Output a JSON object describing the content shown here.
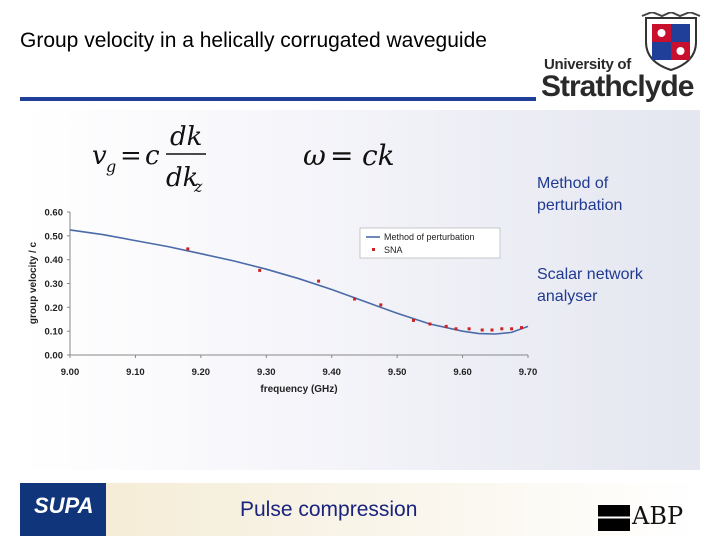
{
  "slide": {
    "title": "Group velocity in a helically corrugated waveguide",
    "footer_text": "Pulse compression"
  },
  "logos": {
    "university_of": "University of",
    "university_name": "Strathclyde",
    "supa": "SUPA",
    "abp": "ABP"
  },
  "equations": {
    "group_velocity": "vg = c dk/dkz",
    "dispersion": "ω = ck"
  },
  "side_labels": {
    "method": "Method of perturbation",
    "sna": "Scalar network analyser"
  },
  "colors": {
    "accent": "#1f3f99",
    "series_line": "#4a6aa8",
    "series_points": "#cc2222",
    "label_blue": "#1f3a8f"
  },
  "chart_data": {
    "type": "scatter",
    "xlabel": "frequency (GHz)",
    "ylabel": "group velocity / c",
    "xlim": [
      9.0,
      9.7
    ],
    "ylim": [
      0.0,
      0.6
    ],
    "x_ticks": [
      "9.00",
      "9.10",
      "9.20",
      "9.30",
      "9.40",
      "9.50",
      "9.60",
      "9.70"
    ],
    "y_ticks": [
      "0.00",
      "0.10",
      "0.20",
      "0.30",
      "0.40",
      "0.50",
      "0.60"
    ],
    "grid": false,
    "legend_position": "top-right",
    "series": [
      {
        "name": "Method of perturbation",
        "kind": "line",
        "x": [
          9.0,
          9.05,
          9.1,
          9.15,
          9.2,
          9.25,
          9.3,
          9.35,
          9.4,
          9.45,
          9.5,
          9.55,
          9.6,
          9.625,
          9.65,
          9.675,
          9.7
        ],
        "y": [
          0.525,
          0.505,
          0.48,
          0.455,
          0.425,
          0.395,
          0.36,
          0.32,
          0.275,
          0.225,
          0.175,
          0.13,
          0.1,
          0.09,
          0.088,
          0.095,
          0.12
        ]
      },
      {
        "name": "SNA",
        "kind": "points",
        "x": [
          9.18,
          9.29,
          9.38,
          9.435,
          9.475,
          9.525,
          9.55,
          9.575,
          9.59,
          9.61,
          9.63,
          9.645,
          9.66,
          9.675,
          9.69
        ],
        "y": [
          0.445,
          0.355,
          0.31,
          0.235,
          0.21,
          0.145,
          0.13,
          0.12,
          0.11,
          0.11,
          0.105,
          0.105,
          0.11,
          0.11,
          0.115
        ]
      }
    ]
  }
}
